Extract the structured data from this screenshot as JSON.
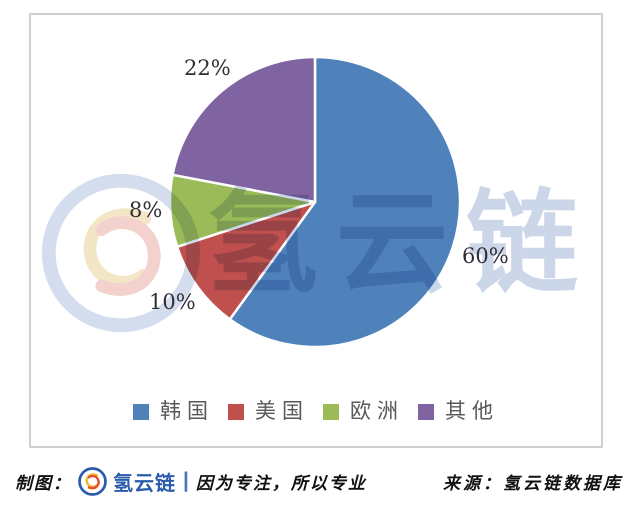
{
  "chart_data": {
    "type": "pie",
    "title": "",
    "labels": [
      "韩国",
      "美国",
      "欧洲",
      "其他"
    ],
    "values": [
      60,
      10,
      8,
      22
    ],
    "value_labels": [
      "60%",
      "10%",
      "8%",
      "22%"
    ],
    "colors": [
      "#4F81BB",
      "#C0504D",
      "#9BBB59",
      "#8064A2"
    ],
    "slice_ids": [
      "korea",
      "usa",
      "europe",
      "other"
    ],
    "start_angle_deg": 0,
    "direction": "clockwise",
    "legend_position": "bottom",
    "label_text_color": "#2e2e36",
    "legend_text_color": "#595959"
  },
  "watermark": {
    "brand_text": "氢云链",
    "color": "#ccd6e9"
  },
  "footer": {
    "credit_label": "制图：",
    "brand_name": "氢云链",
    "divider": "|",
    "slogan": "因为专注，所以专业",
    "source": "来源：氢云链数据库",
    "brand_color": "#2b5cab",
    "text_color": "#111111"
  }
}
